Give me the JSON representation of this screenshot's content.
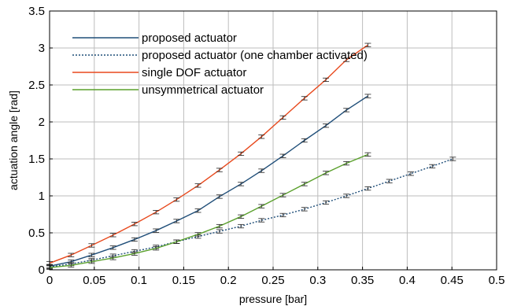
{
  "chart_data": {
    "type": "line",
    "xlabel": "pressure [bar]",
    "ylabel": "actuation angle [rad]",
    "xlim": [
      0,
      0.5
    ],
    "ylim": [
      0,
      3.5
    ],
    "xticks": [
      "0",
      "0.05",
      "0.1",
      "0.15",
      "0.2",
      "0.25",
      "0.3",
      "0.35",
      "0.4",
      "0.45",
      "0.5"
    ],
    "yticks": [
      "0",
      "0.5",
      "1",
      "1.5",
      "2",
      "2.5",
      "3",
      "3.5"
    ],
    "grid": true,
    "legend_position": "top-left",
    "colors": {
      "proposed": "#1f4e79",
      "one_chamber": "#1f4e79",
      "single_dof": "#e8491d",
      "unsymmetrical": "#5aa02c"
    },
    "series": [
      {
        "name": "proposed actuator",
        "color": "#1f4e79",
        "style": "solid",
        "x": [
          0.0,
          0.024,
          0.047,
          0.071,
          0.095,
          0.119,
          0.142,
          0.166,
          0.19,
          0.214,
          0.237,
          0.261,
          0.285,
          0.309,
          0.332,
          0.356
        ],
        "y": [
          0.05,
          0.11,
          0.2,
          0.3,
          0.41,
          0.53,
          0.66,
          0.8,
          0.99,
          1.16,
          1.34,
          1.54,
          1.75,
          1.95,
          2.16,
          2.35
        ]
      },
      {
        "name": "proposed actuator (one chamber activated)",
        "color": "#1f4e79",
        "style": "dotted",
        "x": [
          0.0,
          0.024,
          0.047,
          0.071,
          0.095,
          0.119,
          0.142,
          0.166,
          0.19,
          0.214,
          0.237,
          0.261,
          0.285,
          0.309,
          0.332,
          0.356,
          0.38,
          0.404,
          0.428,
          0.451
        ],
        "y": [
          0.04,
          0.08,
          0.13,
          0.19,
          0.25,
          0.31,
          0.38,
          0.45,
          0.52,
          0.59,
          0.67,
          0.74,
          0.82,
          0.91,
          1.0,
          1.1,
          1.2,
          1.3,
          1.4,
          1.5
        ]
      },
      {
        "name": "single DOF actuator",
        "color": "#e8491d",
        "style": "solid",
        "x": [
          0.0,
          0.024,
          0.047,
          0.071,
          0.095,
          0.119,
          0.142,
          0.166,
          0.19,
          0.214,
          0.237,
          0.261,
          0.285,
          0.309,
          0.332,
          0.356
        ],
        "y": [
          0.09,
          0.2,
          0.33,
          0.47,
          0.62,
          0.78,
          0.95,
          1.14,
          1.35,
          1.57,
          1.8,
          2.06,
          2.32,
          2.57,
          2.84,
          3.04
        ]
      },
      {
        "name": "unsymmetrical actuator",
        "color": "#5aa02c",
        "style": "solid",
        "x": [
          0.0,
          0.024,
          0.047,
          0.071,
          0.095,
          0.119,
          0.142,
          0.166,
          0.19,
          0.214,
          0.237,
          0.261,
          0.285,
          0.309,
          0.332,
          0.356
        ],
        "y": [
          0.03,
          0.06,
          0.11,
          0.16,
          0.22,
          0.29,
          0.38,
          0.48,
          0.59,
          0.72,
          0.86,
          1.01,
          1.16,
          1.31,
          1.44,
          1.56
        ]
      }
    ]
  }
}
